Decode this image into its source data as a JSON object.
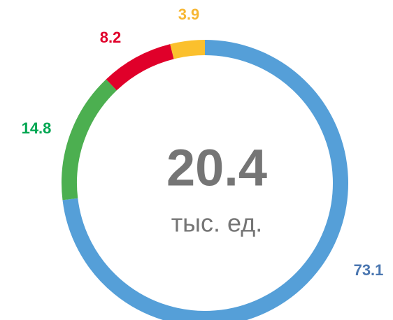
{
  "chart_data": {
    "type": "donut",
    "center_value": "20.4",
    "center_unit": "тыс. ед.",
    "series": [
      {
        "name": "73.1",
        "value": 73.1,
        "color": "#559fd8",
        "label_color": "#4a76b0"
      },
      {
        "name": "14.8",
        "value": 14.8,
        "color": "#4caf50",
        "label_color": "#00a651"
      },
      {
        "name": "8.2",
        "value": 8.2,
        "color": "#e0002a",
        "label_color": "#e0002a"
      },
      {
        "name": "3.9",
        "value": 3.9,
        "color": "#fbc02d",
        "label_color": "#f7b733"
      }
    ]
  }
}
